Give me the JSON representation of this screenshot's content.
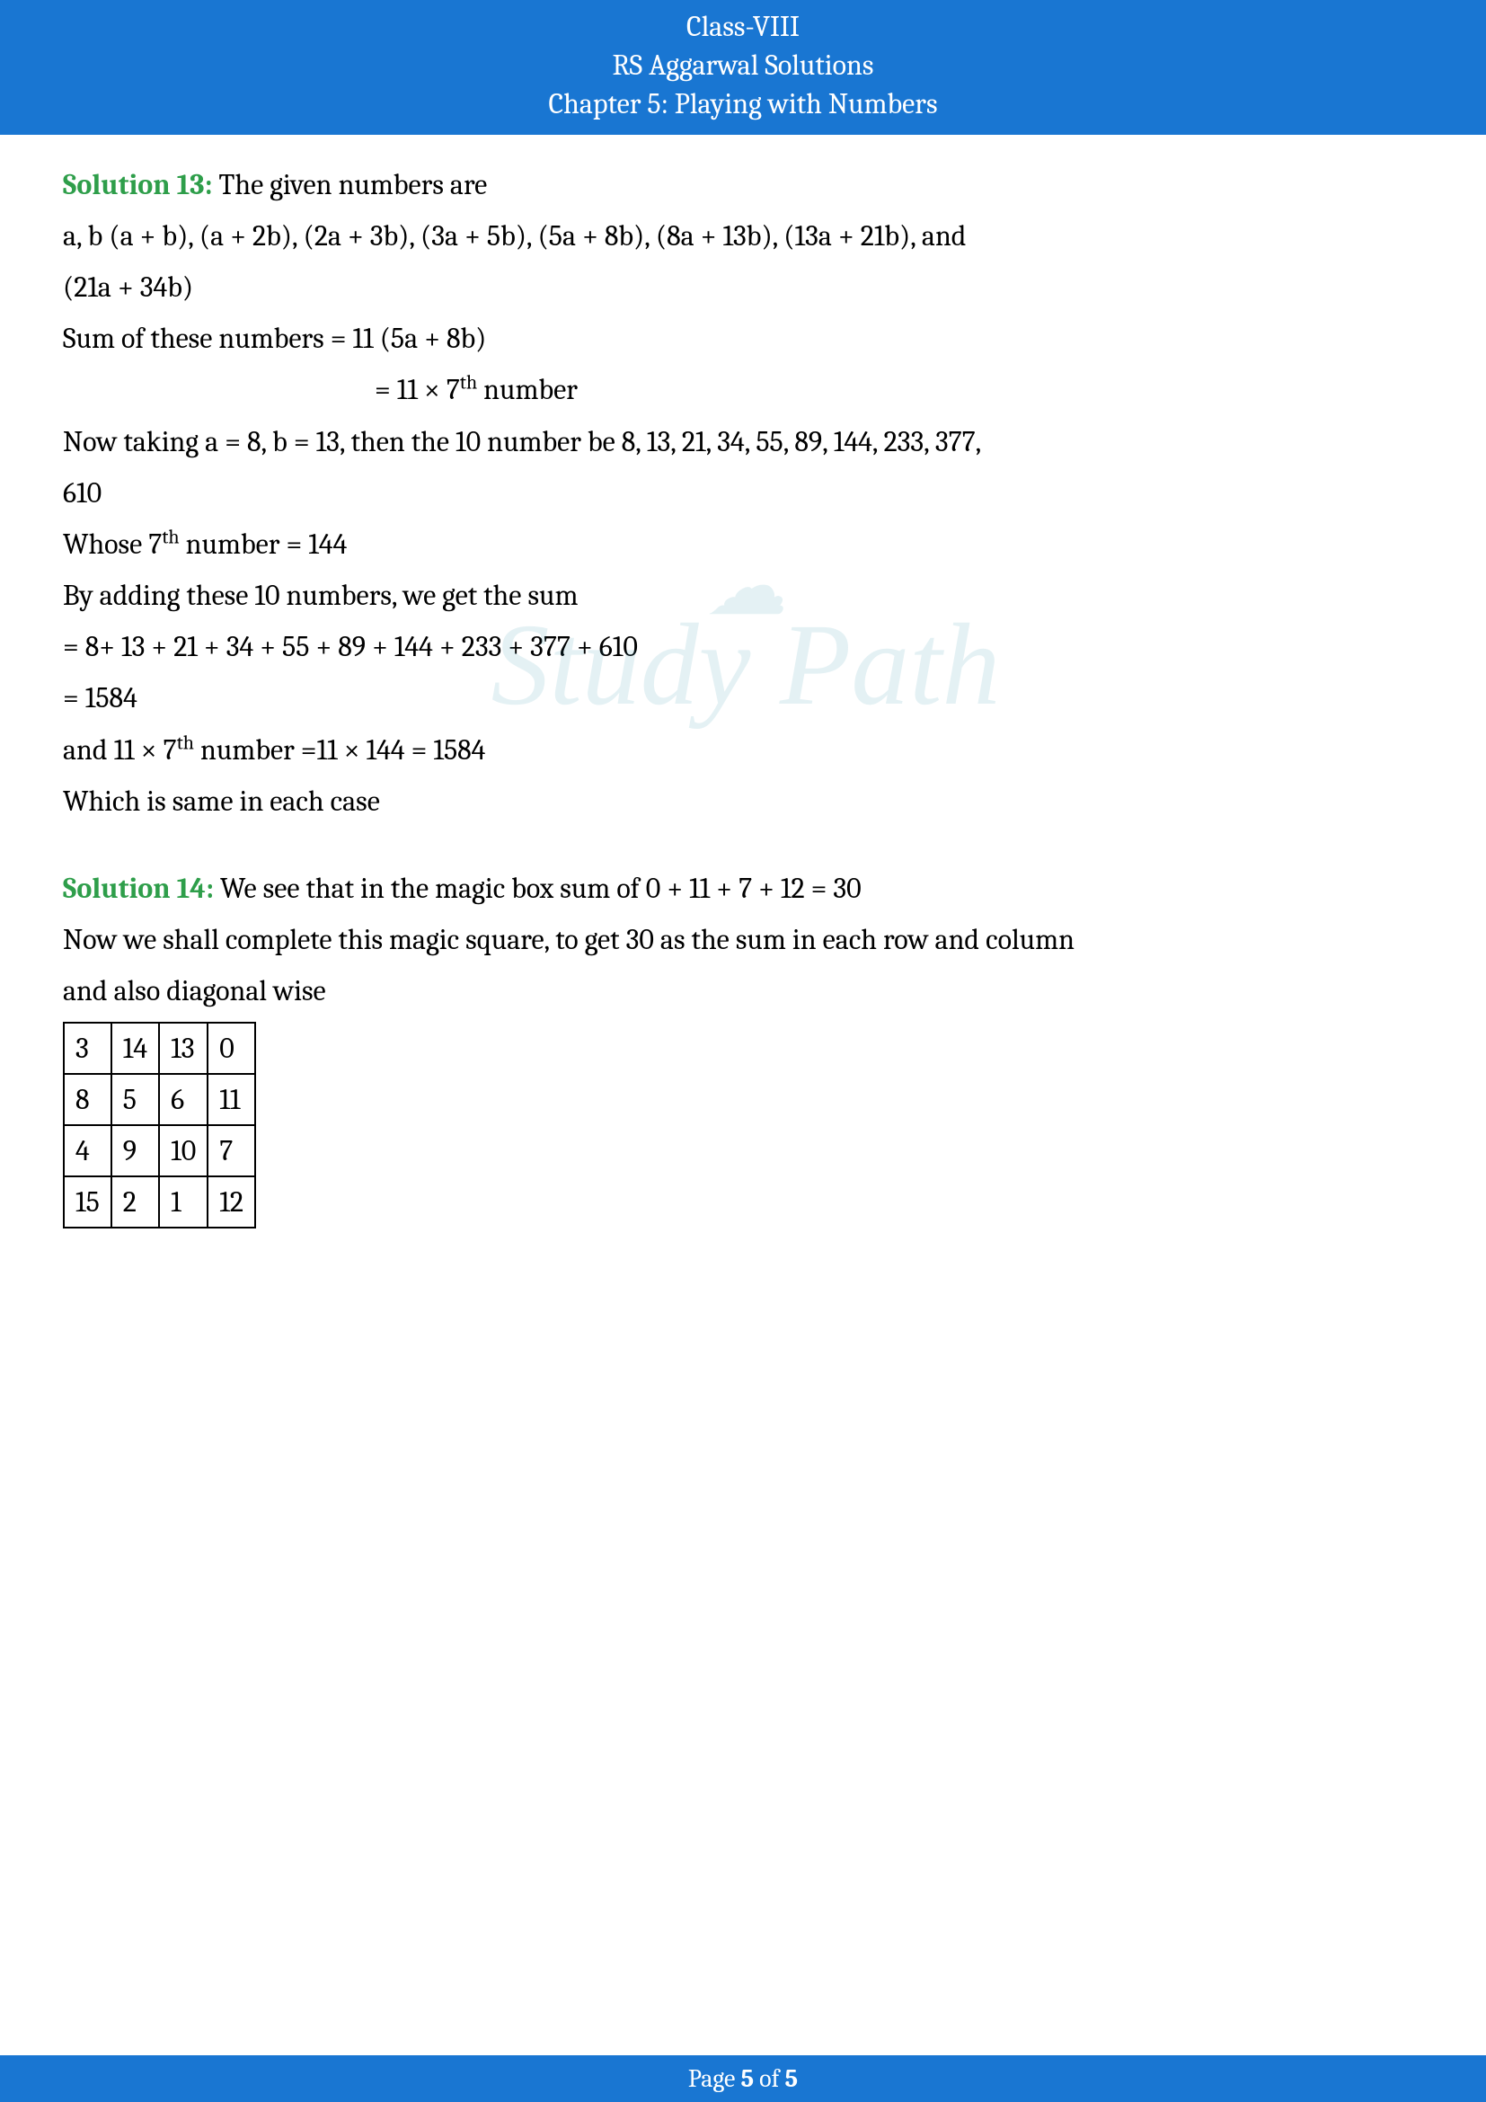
{
  "header": {
    "line1": "Class-VIII",
    "line2": "RS Aggarwal Solutions",
    "line3": "Chapter 5: Playing with Numbers",
    "bg_color": "#1976d2",
    "text_color": "#ffffff"
  },
  "watermark": {
    "top": "☁",
    "text": "Study Path",
    "color": "#2a8fa8",
    "opacity": 0.12
  },
  "solution13": {
    "label": "Solution 13:",
    "label_color": "#2e9e4a",
    "intro": " The given numbers are",
    "line2": "a, b (a + b), (a + 2b), (2a + 3b), (3a + 5b), (5a + 8b), (8a + 13b), (13a + 21b), and",
    "line3": "(21a + 34b)",
    "line4": "Sum of these numbers = 11 (5a + 8b)",
    "line5_pre": "= 11 × 7",
    "line5_sup": "th",
    "line5_post": " number",
    "line6": "Now taking a = 8, b = 13, then the 10 number be 8, 13, 21, 34, 55, 89, 144, 233, 377,",
    "line7": "610",
    "line8_pre": "Whose 7",
    "line8_sup": "th",
    "line8_post": " number = 144",
    "line9": "By adding these 10 numbers, we get the sum",
    "line10": "= 8+ 13 + 21 + 34 + 55 + 89 + 144 + 233 + 377 + 610",
    "line11": "= 1584",
    "line12_pre": "and 11 × 7",
    "line12_sup": "th",
    "line12_post": " number =11 × 144 = 1584",
    "line13": "Which is same in each case"
  },
  "solution14": {
    "label": "Solution 14:",
    "label_color": "#2e9e4a",
    "intro": " We see that in the magic box sum of 0 + 11 + 7 + 12 = 30",
    "line2": "Now we shall complete this magic square, to get 30 as the sum in each row and column",
    "line3": "and also diagonal wise",
    "table": {
      "rows": [
        [
          "3",
          "14",
          "13",
          "0"
        ],
        [
          "8",
          "5",
          "6",
          "11"
        ],
        [
          "4",
          "9",
          "10",
          "7"
        ],
        [
          "15",
          "2",
          "1",
          "12"
        ]
      ],
      "border_color": "#000000",
      "cell_fontsize": 32
    }
  },
  "footer": {
    "prefix": "Page ",
    "current": "5",
    "middle": " of ",
    "total": "5",
    "bg_color": "#1976d2",
    "text_color": "#ffffff"
  }
}
